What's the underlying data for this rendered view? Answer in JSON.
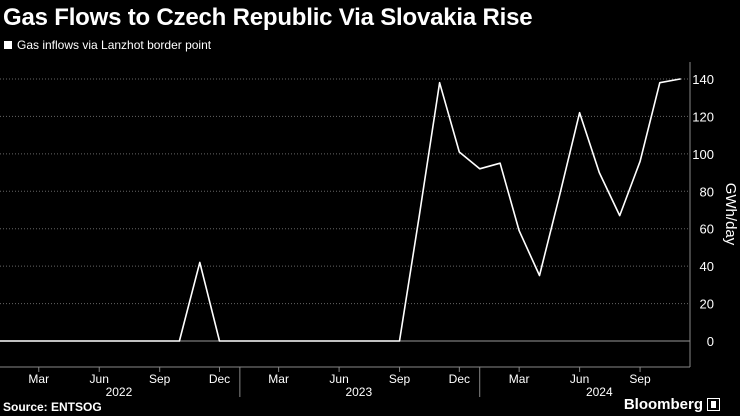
{
  "header": {
    "title": "Gas Flows to Czech Republic Via Slovakia Rise"
  },
  "legend": {
    "label": "Gas inflows via Lanzhot border point"
  },
  "footer": {
    "source": "Source: ENTSOG",
    "brand": "Bloomberg"
  },
  "colors": {
    "background": "#000000",
    "line": "#ffffff",
    "grid": "#666666"
  },
  "chart_data": {
    "type": "line",
    "title": "Gas Flows to Czech Republic Via Slovakia Rise",
    "xlabel": "",
    "ylabel": "GWh/day",
    "ylim": [
      0,
      140
    ],
    "yticks": [
      0,
      20,
      40,
      60,
      80,
      100,
      120,
      140
    ],
    "grid": "horizontal dotted",
    "y_axis_side": "right",
    "legend_position": "top-left",
    "x_month_ticks": [
      {
        "label": "Mar",
        "date": "2022-03-01"
      },
      {
        "label": "Jun",
        "date": "2022-06-01"
      },
      {
        "label": "Sep",
        "date": "2022-09-01"
      },
      {
        "label": "Dec",
        "date": "2022-12-01"
      },
      {
        "label": "Mar",
        "date": "2023-03-01"
      },
      {
        "label": "Jun",
        "date": "2023-06-01"
      },
      {
        "label": "Sep",
        "date": "2023-09-01"
      },
      {
        "label": "Dec",
        "date": "2023-12-01"
      },
      {
        "label": "Mar",
        "date": "2024-03-01"
      },
      {
        "label": "Jun",
        "date": "2024-06-01"
      },
      {
        "label": "Sep",
        "date": "2024-09-01"
      }
    ],
    "x_year_labels": [
      {
        "label": "2022",
        "date": "2022-07-01"
      },
      {
        "label": "2023",
        "date": "2023-07-01"
      },
      {
        "label": "2024",
        "date": "2024-07-01"
      }
    ],
    "series": [
      {
        "name": "Gas inflows via Lanzhot border point",
        "x": [
          "2022-01-01",
          "2022-02-01",
          "2022-03-01",
          "2022-04-01",
          "2022-05-01",
          "2022-06-01",
          "2022-07-01",
          "2022-08-01",
          "2022-09-01",
          "2022-10-01",
          "2022-11-01",
          "2022-12-01",
          "2023-01-01",
          "2023-02-01",
          "2023-03-01",
          "2023-04-01",
          "2023-05-01",
          "2023-06-01",
          "2023-07-01",
          "2023-08-01",
          "2023-09-01",
          "2023-10-01",
          "2023-11-01",
          "2023-12-01",
          "2024-01-01",
          "2024-02-01",
          "2024-03-01",
          "2024-04-01",
          "2024-05-01",
          "2024-06-01",
          "2024-07-01",
          "2024-08-01",
          "2024-09-01",
          "2024-10-01",
          "2024-11-01"
        ],
        "values": [
          0,
          0,
          0,
          0,
          0,
          0,
          0,
          0,
          0,
          0,
          42,
          0,
          0,
          0,
          0,
          0,
          0,
          0,
          0,
          0,
          0,
          67,
          138,
          101,
          92,
          95,
          59,
          35,
          77,
          122,
          90,
          67,
          96,
          138,
          140
        ]
      }
    ]
  }
}
